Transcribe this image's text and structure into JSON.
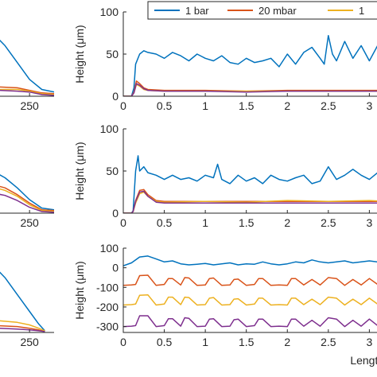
{
  "colors": {
    "bar1": "#0072BD",
    "mbar20": "#D95319",
    "yellow": "#EDB120",
    "purple": "#7E2F8E",
    "axis": "#262626"
  },
  "legend": {
    "placement": "top-right",
    "entries": [
      "1 bar",
      "20 mbar",
      "1"
    ]
  },
  "chart_data": [
    {
      "type": "line",
      "panel": "left-top",
      "xlabel": "",
      "ylabel": "",
      "x_tick_labels": [
        "250"
      ],
      "series": [
        {
          "color": "#0072BD",
          "x": [
            170,
            190,
            210,
            230,
            250,
            270,
            290
          ],
          "y": [
            85,
            75,
            60,
            40,
            20,
            8,
            5
          ]
        },
        {
          "color": "#D95319",
          "x": [
            170,
            200,
            230,
            250,
            270,
            290
          ],
          "y": [
            12,
            11,
            10,
            7,
            4,
            3
          ]
        },
        {
          "color": "#EDB120",
          "x": [
            170,
            200,
            230,
            250,
            270,
            290
          ],
          "y": [
            9,
            8,
            8,
            6,
            3,
            2
          ]
        },
        {
          "color": "#7E2F8E",
          "x": [
            170,
            200,
            230,
            250,
            270,
            290
          ],
          "y": [
            7,
            7,
            6,
            5,
            2,
            1
          ]
        }
      ]
    },
    {
      "type": "line",
      "panel": "right-top",
      "xlabel": "",
      "ylabel": "Height (μm)",
      "xlim": [
        0,
        3.2
      ],
      "ylim": [
        0,
        100
      ],
      "x_ticks": [
        0,
        0.5,
        1,
        1.5,
        2,
        2.5,
        3
      ],
      "x_tick_labels": [
        "0",
        "0.5",
        "1",
        "1.5",
        "2",
        "2.5",
        "3"
      ],
      "y_ticks": [
        0,
        50,
        100
      ],
      "y_tick_labels": [
        "0",
        "50",
        "100"
      ],
      "series": [
        {
          "name": "1 bar",
          "color": "#0072BD",
          "x": [
            0,
            0.1,
            0.13,
            0.15,
            0.2,
            0.25,
            0.3,
            0.4,
            0.5,
            0.6,
            0.7,
            0.8,
            0.9,
            1.0,
            1.1,
            1.2,
            1.3,
            1.4,
            1.5,
            1.6,
            1.7,
            1.8,
            1.9,
            2.0,
            2.1,
            2.2,
            2.3,
            2.4,
            2.45,
            2.5,
            2.55,
            2.6,
            2.7,
            2.8,
            2.9,
            3.0,
            3.1,
            3.2
          ],
          "y": [
            0,
            0,
            10,
            38,
            50,
            54,
            52,
            50,
            45,
            52,
            48,
            42,
            50,
            45,
            42,
            48,
            40,
            38,
            45,
            40,
            42,
            45,
            35,
            50,
            38,
            52,
            58,
            45,
            38,
            72,
            50,
            42,
            65,
            45,
            60,
            42,
            60,
            48
          ]
        },
        {
          "name": "20 mbar",
          "color": "#D95319",
          "x": [
            0,
            0.1,
            0.13,
            0.16,
            0.2,
            0.25,
            0.3,
            0.5,
            1.0,
            1.5,
            2.0,
            2.5,
            3.0,
            3.2
          ],
          "y": [
            0,
            0,
            5,
            18,
            15,
            10,
            8,
            7,
            7,
            6,
            7,
            7,
            7,
            7
          ]
        },
        {
          "name": "1",
          "color": "#EDB120",
          "x": [
            0,
            0.1,
            0.13,
            0.16,
            0.2,
            0.25,
            0.3,
            0.5,
            1.0,
            1.5,
            2.0,
            2.5,
            3.0,
            3.2
          ],
          "y": [
            0,
            0,
            4,
            14,
            12,
            8,
            7,
            6,
            6,
            6,
            6,
            6,
            6,
            6
          ]
        },
        {
          "color": "#7E2F8E",
          "x": [
            0,
            0.1,
            0.13,
            0.16,
            0.2,
            0.25,
            0.3,
            0.5,
            1.0,
            1.5,
            2.0,
            2.5,
            3.0,
            3.2
          ],
          "y": [
            0,
            0,
            4,
            15,
            13,
            9,
            7,
            6,
            6,
            5,
            6,
            6,
            6,
            6
          ]
        }
      ]
    },
    {
      "type": "line",
      "panel": "left-middle",
      "xlabel": "",
      "ylabel": "",
      "x_tick_labels": [
        "250"
      ],
      "series": [
        {
          "color": "#0072BD",
          "x": [
            170,
            190,
            210,
            230,
            250,
            270,
            290
          ],
          "y": [
            55,
            50,
            42,
            30,
            16,
            6,
            4
          ]
        },
        {
          "color": "#D95319",
          "x": [
            170,
            190,
            210,
            230,
            250,
            270,
            290
          ],
          "y": [
            35,
            34,
            30,
            22,
            12,
            4,
            3
          ]
        },
        {
          "color": "#EDB120",
          "x": [
            170,
            190,
            210,
            230,
            250,
            270,
            290
          ],
          "y": [
            32,
            31,
            27,
            20,
            10,
            3,
            2
          ]
        },
        {
          "color": "#7E2F8E",
          "x": [
            170,
            190,
            210,
            230,
            250,
            270,
            290
          ],
          "y": [
            25,
            24,
            21,
            15,
            7,
            2,
            1
          ]
        }
      ]
    },
    {
      "type": "line",
      "panel": "right-middle",
      "xlabel": "",
      "ylabel": "Height (μm)",
      "xlim": [
        0,
        3.2
      ],
      "ylim": [
        0,
        100
      ],
      "x_ticks": [
        0,
        0.5,
        1,
        1.5,
        2,
        2.5,
        3
      ],
      "x_tick_labels": [
        "0",
        "0.5",
        "1",
        "1.5",
        "2",
        "2.5",
        "3"
      ],
      "y_ticks": [
        0,
        50,
        100
      ],
      "y_tick_labels": [
        "0",
        "50",
        "100"
      ],
      "series": [
        {
          "name": "1 bar",
          "color": "#0072BD",
          "x": [
            0,
            0.1,
            0.12,
            0.15,
            0.18,
            0.2,
            0.25,
            0.3,
            0.4,
            0.5,
            0.6,
            0.7,
            0.8,
            0.9,
            1.0,
            1.1,
            1.15,
            1.2,
            1.3,
            1.4,
            1.5,
            1.6,
            1.7,
            1.8,
            1.9,
            2.0,
            2.1,
            2.2,
            2.3,
            2.4,
            2.5,
            2.6,
            2.7,
            2.8,
            2.9,
            3.0,
            3.1,
            3.2
          ],
          "y": [
            0,
            0,
            3,
            50,
            68,
            50,
            55,
            48,
            45,
            40,
            45,
            40,
            42,
            38,
            45,
            42,
            58,
            40,
            35,
            45,
            38,
            42,
            35,
            45,
            40,
            38,
            42,
            45,
            35,
            38,
            55,
            40,
            45,
            52,
            45,
            40,
            48,
            45
          ]
        },
        {
          "name": "20 mbar",
          "color": "#D95319",
          "x": [
            0,
            0.1,
            0.12,
            0.15,
            0.2,
            0.25,
            0.3,
            0.4,
            0.5,
            1.0,
            1.5,
            2.0,
            2.5,
            3.0,
            3.2
          ],
          "y": [
            0,
            0,
            2,
            15,
            27,
            28,
            22,
            15,
            14,
            14,
            14,
            14,
            14,
            14,
            14
          ]
        },
        {
          "name": "1",
          "color": "#EDB120",
          "x": [
            0,
            0.1,
            0.12,
            0.15,
            0.2,
            0.25,
            0.3,
            0.4,
            0.5,
            1.0,
            1.5,
            2.0,
            2.5,
            3.0,
            3.2
          ],
          "y": [
            0,
            0,
            2,
            12,
            23,
            25,
            20,
            14,
            13,
            14,
            13,
            15,
            14,
            15,
            14
          ]
        },
        {
          "color": "#7E2F8E",
          "x": [
            0,
            0.1,
            0.12,
            0.15,
            0.2,
            0.25,
            0.3,
            0.4,
            0.5,
            1.0,
            1.5,
            2.0,
            2.5,
            3.0,
            3.2
          ],
          "y": [
            0,
            0,
            2,
            14,
            25,
            26,
            20,
            13,
            12,
            12,
            12,
            12,
            12,
            12,
            12
          ]
        }
      ]
    },
    {
      "type": "line",
      "panel": "left-bottom",
      "xlabel": "",
      "ylabel": "",
      "x_tick_labels": [
        "250"
      ],
      "series": [
        {
          "color": "#0072BD",
          "x": [
            170,
            190,
            210,
            230,
            250,
            265,
            275
          ],
          "y": [
            88,
            80,
            65,
            45,
            25,
            10,
            2
          ]
        },
        {
          "color": "#D95319",
          "x": [
            170,
            200,
            230,
            250,
            265,
            275
          ],
          "y": [
            8,
            8,
            7,
            5,
            3,
            1
          ]
        },
        {
          "color": "#EDB120",
          "x": [
            170,
            200,
            230,
            250,
            265,
            275
          ],
          "y": [
            15,
            14,
            12,
            9,
            5,
            2
          ]
        },
        {
          "color": "#7E2F8E",
          "x": [
            170,
            200,
            230,
            250,
            265,
            275
          ],
          "y": [
            5,
            5,
            4,
            3,
            2,
            1
          ]
        }
      ]
    },
    {
      "type": "line",
      "panel": "right-bottom",
      "xlabel": "Length (mm)",
      "ylabel": "Height (μm)",
      "xlim": [
        0,
        3.2
      ],
      "ylim": [
        -330,
        100
      ],
      "x_ticks": [
        0,
        0.5,
        1,
        1.5,
        2,
        2.5,
        3
      ],
      "x_tick_labels": [
        "0",
        "0.5",
        "1",
        "1.5",
        "2",
        "2.5",
        "3"
      ],
      "y_ticks": [
        100,
        0,
        -100,
        -200,
        -300
      ],
      "y_tick_labels": [
        "100",
        "0",
        "-100",
        "-200",
        "-300"
      ],
      "series": [
        {
          "name": "1 bar",
          "color": "#0072BD",
          "x": [
            0,
            0.1,
            0.2,
            0.3,
            0.4,
            0.5,
            0.6,
            0.7,
            0.8,
            0.9,
            1.0,
            1.1,
            1.2,
            1.3,
            1.4,
            1.5,
            1.6,
            1.7,
            1.8,
            1.9,
            2.0,
            2.1,
            2.2,
            2.3,
            2.4,
            2.5,
            2.6,
            2.7,
            2.8,
            2.9,
            3.0,
            3.1,
            3.2
          ],
          "y": [
            10,
            25,
            55,
            60,
            45,
            30,
            35,
            20,
            15,
            18,
            22,
            15,
            20,
            25,
            15,
            20,
            18,
            30,
            20,
            15,
            20,
            30,
            25,
            40,
            30,
            25,
            30,
            35,
            25,
            30,
            35,
            30,
            28
          ]
        },
        {
          "name": "20 mbar",
          "color": "#D95319",
          "x": [
            0,
            0.1,
            0.15,
            0.2,
            0.3,
            0.4,
            0.5,
            0.55,
            0.6,
            0.7,
            0.75,
            0.8,
            0.9,
            1.0,
            1.05,
            1.1,
            1.2,
            1.3,
            1.35,
            1.4,
            1.5,
            1.6,
            1.65,
            1.7,
            1.8,
            1.9,
            2.0,
            2.05,
            2.1,
            2.2,
            2.3,
            2.4,
            2.5,
            2.6,
            2.7,
            2.8,
            2.9,
            3.0,
            3.1,
            3.2
          ],
          "y": [
            -90,
            -88,
            -85,
            -40,
            -38,
            -90,
            -85,
            -55,
            -55,
            -88,
            -50,
            -52,
            -90,
            -88,
            -55,
            -52,
            -90,
            -88,
            -60,
            -58,
            -90,
            -85,
            -55,
            -55,
            -90,
            -88,
            -90,
            -55,
            -55,
            -88,
            -60,
            -88,
            -50,
            -55,
            -90,
            -60,
            -88,
            -55,
            -85,
            -70
          ]
        },
        {
          "name": "1",
          "color": "#EDB120",
          "x": [
            0,
            0.1,
            0.15,
            0.2,
            0.3,
            0.4,
            0.5,
            0.55,
            0.6,
            0.7,
            0.75,
            0.8,
            0.9,
            1.0,
            1.05,
            1.1,
            1.2,
            1.3,
            1.35,
            1.4,
            1.5,
            1.6,
            1.65,
            1.7,
            1.8,
            1.9,
            2.0,
            2.05,
            2.1,
            2.2,
            2.3,
            2.4,
            2.5,
            2.6,
            2.7,
            2.8,
            2.9,
            3.0,
            3.1,
            3.2
          ],
          "y": [
            -190,
            -188,
            -185,
            -140,
            -138,
            -190,
            -185,
            -150,
            -150,
            -188,
            -150,
            -152,
            -190,
            -188,
            -155,
            -152,
            -190,
            -188,
            -160,
            -158,
            -190,
            -185,
            -155,
            -155,
            -190,
            -188,
            -190,
            -155,
            -155,
            -188,
            -160,
            -188,
            -150,
            -155,
            -190,
            -160,
            -188,
            -155,
            -185,
            -170
          ]
        },
        {
          "color": "#7E2F8E",
          "x": [
            0,
            0.1,
            0.15,
            0.2,
            0.3,
            0.4,
            0.5,
            0.55,
            0.6,
            0.7,
            0.75,
            0.8,
            0.9,
            1.0,
            1.05,
            1.1,
            1.2,
            1.3,
            1.35,
            1.4,
            1.5,
            1.6,
            1.65,
            1.7,
            1.8,
            1.9,
            2.0,
            2.05,
            2.1,
            2.2,
            2.3,
            2.4,
            2.5,
            2.6,
            2.7,
            2.8,
            2.9,
            3.0,
            3.1,
            3.2
          ],
          "y": [
            -300,
            -298,
            -295,
            -245,
            -245,
            -300,
            -295,
            -260,
            -260,
            -298,
            -255,
            -258,
            -300,
            -298,
            -262,
            -260,
            -300,
            -298,
            -265,
            -262,
            -300,
            -295,
            -262,
            -262,
            -300,
            -298,
            -300,
            -262,
            -262,
            -298,
            -268,
            -298,
            -255,
            -262,
            -300,
            -268,
            -298,
            -262,
            -295,
            -280
          ]
        }
      ]
    }
  ]
}
